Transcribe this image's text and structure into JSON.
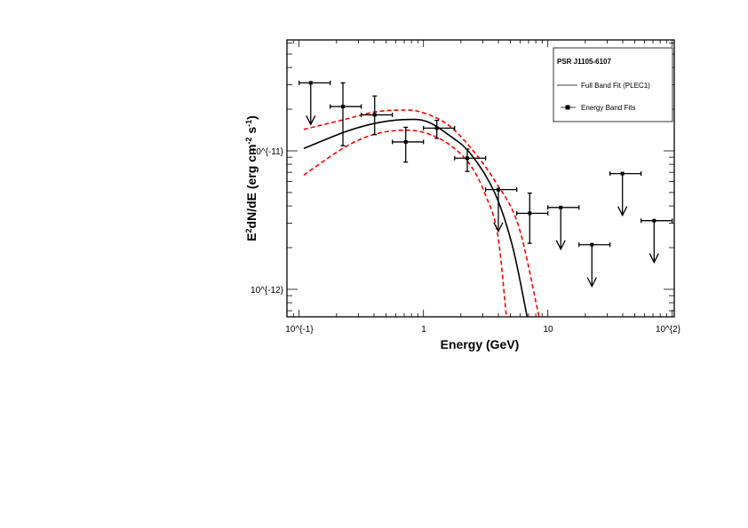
{
  "chart_data": {
    "type": "scatter",
    "title": "",
    "xlabel": "Energy (GeV)",
    "ylabel": "E^{2}dN/dE (erg cm^{-2} s^{-1})",
    "xscale": "log",
    "yscale": "log",
    "xlim": [
      0.091,
      110
    ],
    "ylim": [
      6.3e-13,
      6.3e-11
    ],
    "grid": false,
    "x_tick_labels": [
      {
        "value": 0.1,
        "label": "10^{-1}"
      },
      {
        "value": 1,
        "label": "1"
      },
      {
        "value": 10,
        "label": "10"
      },
      {
        "value": 100,
        "label": "10^{2}"
      }
    ],
    "y_tick_labels": [
      {
        "value": 1e-11,
        "label": "10^{-11}"
      },
      {
        "value": 1e-12,
        "label": "10^{-12}"
      }
    ],
    "legend": {
      "placement": "top-right",
      "title": "PSR J1105-6107",
      "entries": [
        {
          "label": "Full Band Fit (PLEC1)",
          "marker": "line"
        },
        {
          "label": "Energy Band Fits",
          "marker": "line-square"
        }
      ]
    },
    "colors": {
      "data": "#000000",
      "fit": "#000000",
      "band": "#ff0000"
    },
    "energy_band_points": [
      {
        "x": 0.124,
        "xlo": 0.1,
        "xhi": 0.178,
        "y": 3.1e-11,
        "upper_limit": true
      },
      {
        "x": 0.225,
        "xlo": 0.178,
        "xhi": 0.316,
        "y": 2.09e-11,
        "ylo": 1.09e-11,
        "yhi": 3.1e-11
      },
      {
        "x": 0.405,
        "xlo": 0.316,
        "xhi": 0.562,
        "y": 1.82e-11,
        "ylo": 1.31e-11,
        "yhi": 2.49e-11
      },
      {
        "x": 0.72,
        "xlo": 0.562,
        "xhi": 1.0,
        "y": 1.16e-11,
        "ylo": 8.3e-12,
        "yhi": 1.48e-11
      },
      {
        "x": 1.28,
        "xlo": 1.0,
        "xhi": 1.78,
        "y": 1.46e-11,
        "ylo": 1.23e-11,
        "yhi": 1.66e-11
      },
      {
        "x": 2.25,
        "xlo": 1.78,
        "xhi": 3.16,
        "y": 8.85e-12,
        "ylo": 7.1e-12,
        "yhi": 1.03e-11
      },
      {
        "x": 4.0,
        "xlo": 3.16,
        "xhi": 5.62,
        "y": 5.25e-12,
        "upper_limit": true
      },
      {
        "x": 7.15,
        "xlo": 5.62,
        "xhi": 10.0,
        "y": 3.54e-12,
        "ylo": 2.15e-12,
        "yhi": 4.95e-12
      },
      {
        "x": 12.7,
        "xlo": 10.0,
        "xhi": 17.8,
        "y": 3.9e-12,
        "upper_limit": true
      },
      {
        "x": 22.6,
        "xlo": 17.8,
        "xhi": 31.6,
        "y": 2.1e-12,
        "upper_limit": true
      },
      {
        "x": 39.8,
        "xlo": 31.6,
        "xhi": 56.2,
        "y": 6.85e-12,
        "upper_limit": true
      },
      {
        "x": 71.5,
        "xlo": 56.2,
        "xhi": 100.0,
        "y": 3.13e-12,
        "upper_limit": true
      }
    ],
    "full_band_fit": {
      "x": [
        0.109,
        0.228,
        0.394,
        0.681,
        1.06,
        1.64,
        2.4,
        3.73,
        5.18,
        6.81
      ],
      "y": [
        1.04e-11,
        1.36e-11,
        1.57e-11,
        1.68e-11,
        1.63e-11,
        1.28e-11,
        9.5e-12,
        5e-12,
        2.07e-12,
        6.35e-13
      ]
    },
    "fit_band_upper": {
      "x": [
        0.109,
        0.228,
        0.394,
        0.644,
        0.946,
        1.55,
        2.4,
        3.73,
        5.77,
        8.49
      ],
      "y": [
        1.43e-11,
        1.68e-11,
        1.9e-11,
        1.97e-11,
        1.91e-11,
        1.56e-11,
        1.05e-11,
        6.12e-12,
        2.92e-12,
        6.35e-13
      ]
    },
    "fit_band_lower": {
      "x": [
        0.109,
        0.228,
        0.394,
        0.681,
        1.06,
        1.64,
        2.4,
        3.16,
        3.94,
        4.64
      ],
      "y": [
        6.68e-12,
        1.05e-11,
        1.31e-11,
        1.41e-11,
        1.34e-11,
        1.1e-11,
        7.82e-12,
        4.77e-12,
        2.52e-12,
        6.35e-13
      ]
    }
  }
}
